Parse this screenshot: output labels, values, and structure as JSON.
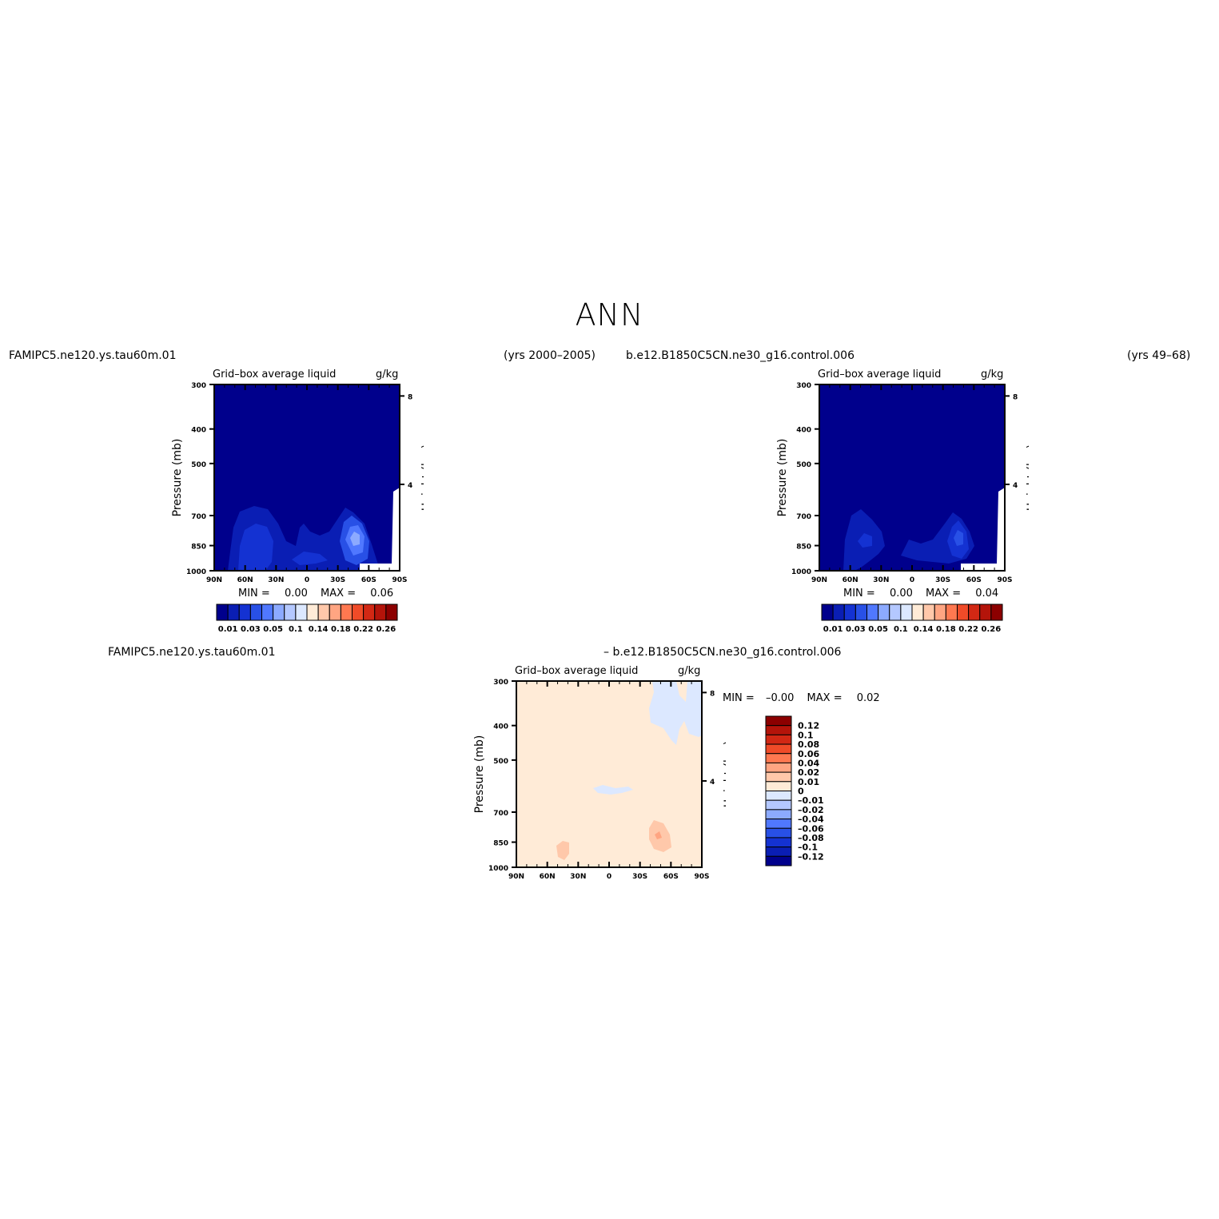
{
  "page_title": "ANN",
  "panels": [
    {
      "case": "FAMIPC5.ne120.ys.tau60m.01",
      "years": "(yrs 2000–2005)",
      "field": "Grid–box average liquid",
      "units": "g/kg",
      "min_label": "MIN =",
      "min_value": "0.00",
      "max_label": "MAX =",
      "max_value": "0.06"
    },
    {
      "case": "b.e12.B1850C5CN.ne30_g16.control.006",
      "years": "(yrs 49–68)",
      "field": "Grid–box average liquid",
      "units": "g/kg",
      "min_label": "MIN =",
      "min_value": "0.00",
      "max_label": "MAX =",
      "max_value": "0.04"
    },
    {
      "case": "FAMIPC5.ne120.ys.tau60m.01",
      "case2": "– b.e12.B1850C5CN.ne30_g16.control.006",
      "field": "Grid–box average liquid",
      "units": "g/kg",
      "min_label": "MIN =",
      "min_value": "–0.00",
      "max_label": "MAX =",
      "max_value": "0.02"
    }
  ],
  "axes": {
    "ylabel": "Pressure (mb)",
    "ylabel_right": "Height (km)",
    "y_ticks": [
      "300",
      "400",
      "500",
      "700",
      "850",
      "1000"
    ],
    "y_ticks_right": [
      "8",
      "4"
    ],
    "x_ticks": [
      "90N",
      "60N",
      "30N",
      "0",
      "30S",
      "60S",
      "90S"
    ]
  },
  "colorbars": {
    "field_labels": [
      "0.01",
      "0.03",
      "0.05",
      "0.1",
      "0.14",
      "0.18",
      "0.22",
      "0.26"
    ],
    "field_colors": [
      "#00008c",
      "#0a1eb4",
      "#1432d2",
      "#2850e6",
      "#5078ff",
      "#8caaff",
      "#b4c8ff",
      "#dce8ff",
      "#ffebd7",
      "#ffc8aa",
      "#ffa582",
      "#ff7850",
      "#f04b28",
      "#d22814",
      "#b4140a",
      "#8c0000"
    ],
    "diff_labels": [
      "0.12",
      "0.1",
      "0.08",
      "0.06",
      "0.04",
      "0.02",
      "0.01",
      "0",
      "–0.01",
      "–0.02",
      "–0.04",
      "–0.06",
      "–0.08",
      "–0.1",
      "–0.12"
    ],
    "diff_colors": [
      "#8c0000",
      "#b4140a",
      "#d22814",
      "#f04b28",
      "#ff7850",
      "#ffa582",
      "#ffc8aa",
      "#ffebd7",
      "#dce8ff",
      "#b4c8ff",
      "#8caaff",
      "#5078ff",
      "#2850e6",
      "#1432d2",
      "#0a1eb4",
      "#00008c"
    ]
  },
  "chart_data": [
    {
      "type": "heatmap",
      "title": "Grid–box average liquid",
      "units": "g/kg",
      "x_range": [
        "90N",
        "90S"
      ],
      "y_range_mb": [
        300,
        1000
      ],
      "features": [
        {
          "lat": "50N",
          "p_mb": 880,
          "value": 0.03
        },
        {
          "lat": "40S",
          "p_mb": 860,
          "value": 0.06
        },
        {
          "lat": "5S",
          "p_mb": 900,
          "value": 0.02
        }
      ]
    },
    {
      "type": "heatmap",
      "title": "Grid–box average liquid",
      "units": "g/kg",
      "x_range": [
        "90N",
        "90S"
      ],
      "y_range_mb": [
        300,
        1000
      ],
      "features": [
        {
          "lat": "60N",
          "p_mb": 870,
          "value": 0.02
        },
        {
          "lat": "40S",
          "p_mb": 860,
          "value": 0.04
        }
      ]
    },
    {
      "type": "heatmap",
      "title": "Grid–box average liquid",
      "units": "g/kg",
      "x_range": [
        "90N",
        "90S"
      ],
      "y_range_mb": [
        300,
        1000
      ],
      "features": [
        {
          "lat": "40S",
          "p_mb": 870,
          "value": 0.02
        },
        {
          "lat": "45N",
          "p_mb": 910,
          "value": 0.01
        },
        {
          "lat": "60S",
          "p_mb": 400,
          "value": -0.005
        }
      ]
    }
  ]
}
